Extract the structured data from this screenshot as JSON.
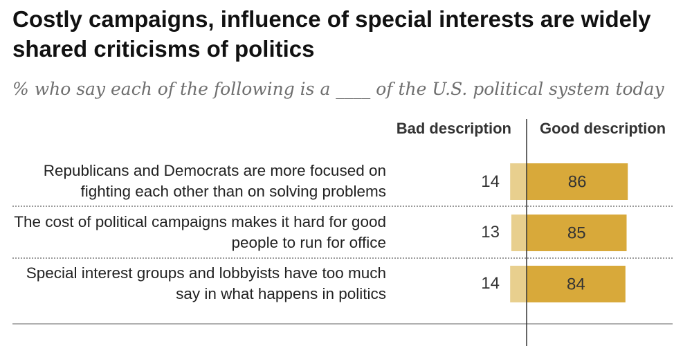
{
  "header": {
    "title": "Costly campaigns, influence of special interests are widely shared criticisms of politics",
    "subtitle": "% who say each of the following is a ____ of the U.S. political system today"
  },
  "colors": {
    "bad": "#e8cf8e",
    "good": "#d8a93a",
    "axis": "#333333"
  },
  "chart_data": {
    "type": "bar",
    "orientation": "horizontal-diverging-stacked",
    "title": "Costly campaigns, influence of special interests are widely shared criticisms of politics",
    "subtitle": "% who say each of the following is a ____ of the U.S. political system today",
    "categories": [
      "Republicans and Democrats are more focused on fighting each other than on solving problems",
      "The cost of political campaigns makes it hard for good people to run for office",
      "Special interest groups and lobbyists have too much say in what happens in politics"
    ],
    "series": [
      {
        "name": "Bad description",
        "values": [
          14,
          13,
          14
        ]
      },
      {
        "name": "Good description",
        "values": [
          86,
          85,
          84
        ]
      }
    ],
    "xlim": [
      0,
      100
    ],
    "legend": "column headers above bars"
  }
}
